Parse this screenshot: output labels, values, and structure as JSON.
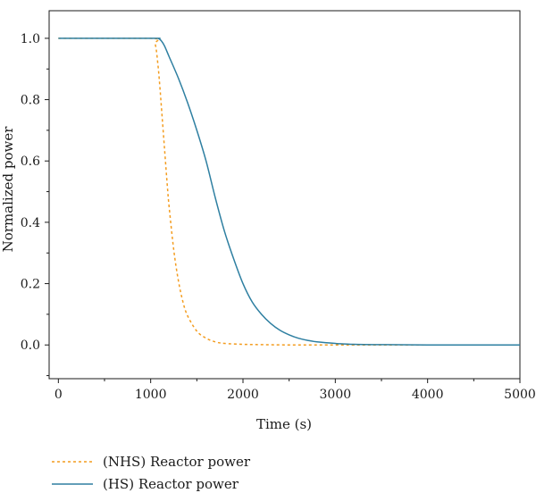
{
  "chart_data": {
    "type": "line",
    "title": "",
    "xlabel": "Time (s)",
    "ylabel": "Normalized power",
    "xlim": [
      -100,
      5000
    ],
    "ylim": [
      -0.11,
      1.09
    ],
    "grid": false,
    "legend_position": "below",
    "x_ticks": [
      0,
      1000,
      2000,
      3000,
      4000,
      5000
    ],
    "x_tick_labels": [
      "0",
      "1000",
      "2000",
      "3000",
      "4000",
      "5000"
    ],
    "y_ticks": [
      0.0,
      0.2,
      0.4,
      0.6,
      0.8,
      1.0
    ],
    "y_tick_labels": [
      "0.0",
      "0.2",
      "0.4",
      "0.6",
      "0.8",
      "1.0"
    ],
    "series": [
      {
        "name": "(NHS) Reactor power",
        "color": "#f39c1f",
        "style": "dotted",
        "x": [
          0,
          1000,
          1050,
          1080,
          1100,
          1120,
          1150,
          1180,
          1200,
          1250,
          1300,
          1350,
          1400,
          1500,
          1600,
          1700,
          1800,
          2000,
          2200,
          2500,
          3000,
          4000,
          5000
        ],
        "y": [
          1.0,
          1.0,
          0.98,
          0.91,
          0.84,
          0.76,
          0.64,
          0.52,
          0.45,
          0.31,
          0.21,
          0.14,
          0.095,
          0.045,
          0.022,
          0.01,
          0.005,
          0.002,
          0.001,
          0.0,
          0.0,
          0.0,
          0.0
        ]
      },
      {
        "name": "(HS) Reactor power",
        "color": "#2e7fa1",
        "style": "solid",
        "x": [
          0,
          1000,
          1080,
          1120,
          1150,
          1200,
          1300,
          1400,
          1500,
          1600,
          1700,
          1800,
          1900,
          2000,
          2100,
          2200,
          2300,
          2400,
          2500,
          2600,
          2700,
          2800,
          3000,
          3200,
          3500,
          4000,
          5000
        ],
        "y": [
          1.0,
          1.0,
          1.0,
          0.99,
          0.975,
          0.94,
          0.87,
          0.79,
          0.7,
          0.6,
          0.48,
          0.37,
          0.28,
          0.2,
          0.14,
          0.1,
          0.07,
          0.048,
          0.033,
          0.022,
          0.015,
          0.01,
          0.005,
          0.002,
          0.001,
          0.0,
          0.0
        ]
      }
    ]
  }
}
